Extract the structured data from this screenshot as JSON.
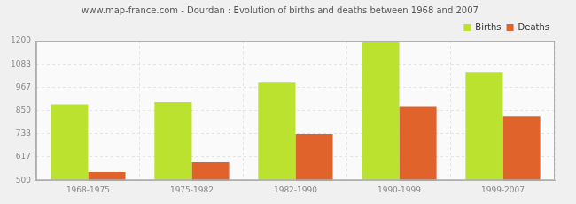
{
  "chart_data": {
    "type": "bar",
    "title": "www.map-france.com - Dourdan : Evolution of births and deaths between 1968 and 2007",
    "categories": [
      "1968-1975",
      "1975-1982",
      "1982-1990",
      "1990-1999",
      "1999-2007"
    ],
    "series": [
      {
        "name": "Births",
        "color": "#bbe22f",
        "values": [
          882,
          893,
          990,
          1200,
          1043
        ]
      },
      {
        "name": "Deaths",
        "color": "#e0632c",
        "values": [
          541,
          590,
          732,
          868,
          820
        ]
      }
    ],
    "ylim": [
      500,
      1200
    ],
    "yticks": [
      500,
      617,
      733,
      850,
      967,
      1083,
      1200
    ],
    "grid": true,
    "legend": "upper right"
  }
}
